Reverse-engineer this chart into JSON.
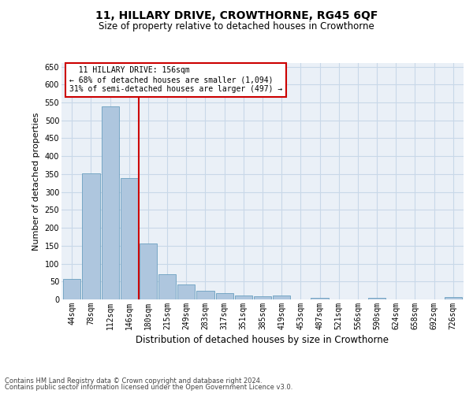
{
  "title": "11, HILLARY DRIVE, CROWTHORNE, RG45 6QF",
  "subtitle": "Size of property relative to detached houses in Crowthorne",
  "xlabel": "Distribution of detached houses by size in Crowthorne",
  "ylabel": "Number of detached properties",
  "categories": [
    "44sqm",
    "78sqm",
    "112sqm",
    "146sqm",
    "180sqm",
    "215sqm",
    "249sqm",
    "283sqm",
    "317sqm",
    "351sqm",
    "385sqm",
    "419sqm",
    "453sqm",
    "487sqm",
    "521sqm",
    "556sqm",
    "590sqm",
    "624sqm",
    "658sqm",
    "692sqm",
    "726sqm"
  ],
  "values": [
    57,
    353,
    540,
    338,
    157,
    70,
    42,
    25,
    17,
    10,
    8,
    10,
    1,
    5,
    1,
    1,
    5,
    1,
    1,
    1,
    6
  ],
  "bar_color": "#aec6de",
  "bar_edge_color": "#6a9fc0",
  "vline_color": "#cc0000",
  "annotation_line1": "  11 HILLARY DRIVE: 156sqm",
  "annotation_line2": "← 68% of detached houses are smaller (1,094)",
  "annotation_line3": "31% of semi-detached houses are larger (497) →",
  "annotation_box_color": "#ffffff",
  "annotation_box_edge": "#cc0000",
  "grid_color": "#c8d8e8",
  "bg_color": "#eaf0f7",
  "footer_line1": "Contains HM Land Registry data © Crown copyright and database right 2024.",
  "footer_line2": "Contains public sector information licensed under the Open Government Licence v3.0.",
  "ylim": [
    0,
    660
  ],
  "yticks": [
    0,
    50,
    100,
    150,
    200,
    250,
    300,
    350,
    400,
    450,
    500,
    550,
    600,
    650
  ],
  "title_fontsize": 10,
  "subtitle_fontsize": 8.5,
  "ylabel_fontsize": 8,
  "xlabel_fontsize": 8.5,
  "tick_fontsize": 7,
  "footer_fontsize": 6
}
